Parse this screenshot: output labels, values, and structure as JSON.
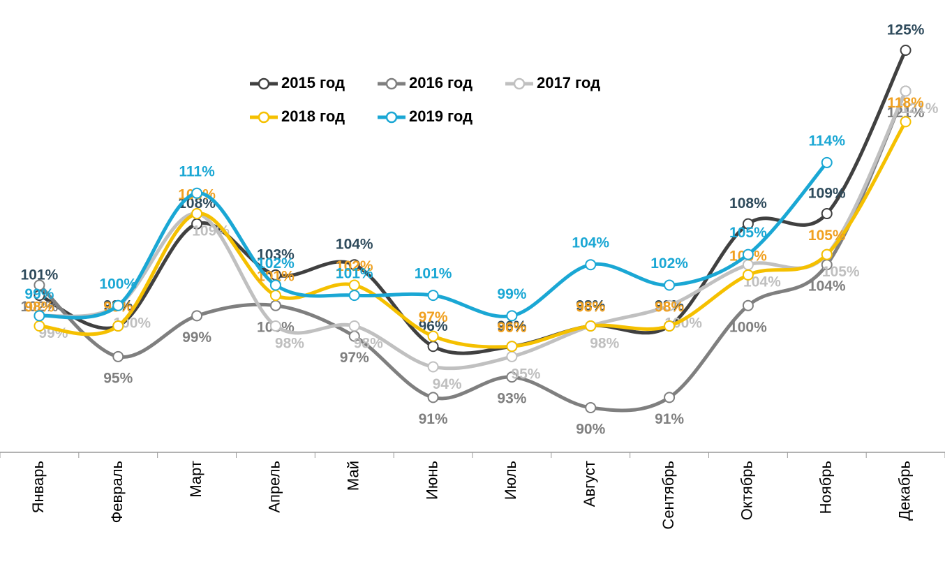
{
  "chart_data": {
    "type": "line",
    "categories": [
      "Январь",
      "Февраль",
      "Март",
      "Апрель",
      "Май",
      "Июнь",
      "Июль",
      "Август",
      "Сентябрь",
      "Октябрь",
      "Ноябрь",
      "Декабрь"
    ],
    "series": [
      {
        "name": "2015 год",
        "color": "#404040",
        "label_color": "#2f4b5c",
        "values": [
          101,
          98,
          108,
          103,
          104,
          96,
          96,
          98,
          98,
          108,
          109,
          125
        ],
        "value_labels": [
          "101%",
          "98%",
          "108%",
          "103%",
          "104%",
          "96%",
          "96%",
          "98%",
          "98%",
          "108%",
          "109%",
          "125%"
        ]
      },
      {
        "name": "2016 год",
        "color": "#7f7f7f",
        "label_color": "#7f7f7f",
        "values": [
          102,
          95,
          99,
          100,
          97,
          91,
          93,
          90,
          91,
          100,
          104,
          121
        ],
        "value_labels": [
          "102%",
          "95%",
          "99%",
          "100%",
          "97%",
          "91%",
          "93%",
          "90%",
          "91%",
          "100%",
          "104%",
          "121%"
        ]
      },
      {
        "name": "2017 год",
        "color": "#c0c0c0",
        "label_color": "#bfbfbf",
        "values": [
          99,
          100,
          109,
          98,
          98,
          94,
          95,
          98,
          100,
          104,
          105,
          121
        ],
        "value_labels": [
          "99%",
          "100%",
          "109%",
          "98%",
          "98%",
          "94%",
          "95%",
          "98%",
          "100%",
          "104%",
          "105%",
          "121%"
        ]
      },
      {
        "name": "2018 год",
        "color": "#f5c000",
        "label_color": "#f0a020",
        "values": [
          98,
          98,
          109,
          101,
          102,
          97,
          96,
          98,
          98,
          103,
          105,
          118
        ],
        "value_labels": [
          "98%",
          "98%",
          "109%",
          "101%",
          "102%",
          "97%",
          "96%",
          "98%",
          "98%",
          "103%",
          "105%",
          "118%"
        ]
      },
      {
        "name": "2019 год",
        "color": "#1aa7d4",
        "label_color": "#1aa7d4",
        "values": [
          99,
          100,
          111,
          102,
          101,
          101,
          99,
          104,
          102,
          105,
          114,
          null
        ],
        "value_labels": [
          "99%",
          "100%",
          "111%",
          "102%",
          "101%",
          "101%",
          "99%",
          "104%",
          "102%",
          "105%",
          "114%",
          null
        ]
      }
    ]
  }
}
